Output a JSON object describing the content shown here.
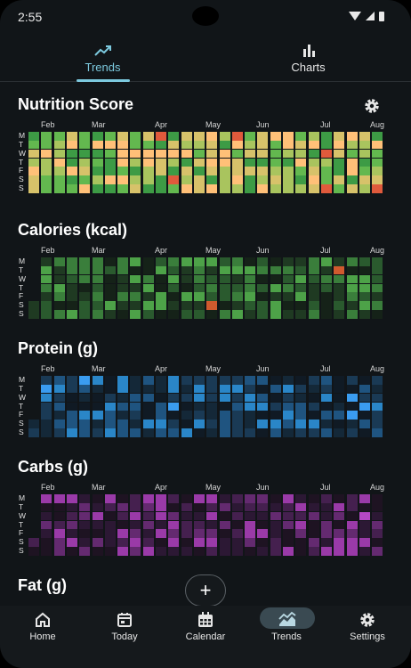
{
  "status": {
    "time": "2:55"
  },
  "tabs": [
    {
      "label": "Trends",
      "icon": "trend-line-icon",
      "active": true
    },
    {
      "label": "Charts",
      "icon": "bar-chart-icon",
      "active": false
    }
  ],
  "months": [
    "Feb",
    "Mar",
    "Apr",
    "May",
    "Jun",
    "Jul",
    "Aug"
  ],
  "weekdays": [
    "M",
    "T",
    "W",
    "T",
    "F",
    "S",
    "S"
  ],
  "sections": [
    {
      "key": "nutrition",
      "title": "Nutrition Score",
      "palette": [
        "#ffc078",
        "#d7c26a",
        "#a9c45e",
        "#63b84f",
        "#3d9b45"
      ],
      "alert": "#e05a3c",
      "has_settings": true
    },
    {
      "key": "calories",
      "title": "Calories (kcal)",
      "palette": [
        "#152218",
        "#1f3a22",
        "#2a5a2e",
        "#3a7e3b",
        "#4da248"
      ],
      "alert": "#d05a2e",
      "has_settings": false
    },
    {
      "key": "protein",
      "title": "Protein (g)",
      "palette": [
        "#101a24",
        "#142838",
        "#1a3a55",
        "#1f5480",
        "#2a86c8"
      ],
      "alert": "#3a9cf0",
      "has_settings": false
    },
    {
      "key": "carbs",
      "title": "Carbs (g)",
      "palette": [
        "#1e1322",
        "#2c1834",
        "#45204f",
        "#642a70",
        "#9a3aa8"
      ],
      "alert": "#b548c4",
      "has_settings": false
    },
    {
      "key": "fat",
      "title": "Fat (g)",
      "palette": [],
      "alert": "",
      "has_settings": false
    }
  ],
  "fab": {
    "label": "+"
  },
  "nav": [
    {
      "label": "Home",
      "icon": "home-icon",
      "active": false
    },
    {
      "label": "Today",
      "icon": "today-calendar-icon",
      "active": false
    },
    {
      "label": "Calendar",
      "icon": "calendar-grid-icon",
      "active": false
    },
    {
      "label": "Trends",
      "icon": "trends-wave-icon",
      "active": true
    },
    {
      "label": "Settings",
      "icon": "gear-icon",
      "active": false
    }
  ]
}
